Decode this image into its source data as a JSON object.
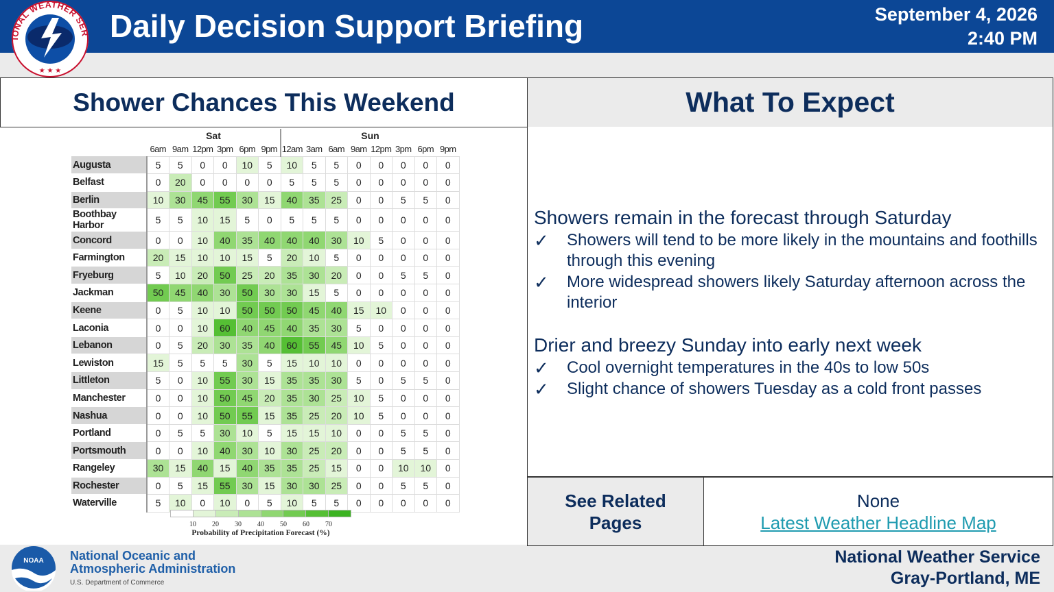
{
  "header": {
    "title": "Daily Decision Support Briefing",
    "date": "September 4, 2026",
    "time": "2:40 PM",
    "logo_text": "NATIONAL WEATHER SERVICE",
    "bg_color": "#0c4796"
  },
  "left_panel": {
    "title": "Shower Chances This Weekend",
    "table": {
      "days": [
        {
          "label": "Sat",
          "span": 6
        },
        {
          "label": "Sun",
          "span": 8
        }
      ],
      "hours": [
        "6am",
        "9am",
        "12pm",
        "3pm",
        "6pm",
        "9pm",
        "12am",
        "3am",
        "6am",
        "9am",
        "12pm",
        "3pm",
        "6pm",
        "9pm"
      ],
      "rows": [
        {
          "loc": "Augusta",
          "values": [
            5,
            5,
            0,
            0,
            10,
            5,
            10,
            5,
            5,
            0,
            0,
            0,
            0,
            0
          ]
        },
        {
          "loc": "Belfast",
          "values": [
            0,
            20,
            0,
            0,
            0,
            0,
            5,
            5,
            5,
            0,
            0,
            0,
            0,
            0
          ]
        },
        {
          "loc": "Berlin",
          "values": [
            10,
            30,
            45,
            55,
            30,
            15,
            40,
            35,
            25,
            0,
            0,
            5,
            5,
            0
          ]
        },
        {
          "loc": "Boothbay Harbor",
          "values": [
            5,
            5,
            10,
            15,
            5,
            0,
            5,
            5,
            5,
            0,
            0,
            0,
            0,
            0
          ]
        },
        {
          "loc": "Concord",
          "values": [
            0,
            0,
            10,
            40,
            35,
            40,
            40,
            40,
            30,
            10,
            5,
            0,
            0,
            0
          ]
        },
        {
          "loc": "Farmington",
          "values": [
            20,
            15,
            10,
            10,
            15,
            5,
            20,
            10,
            5,
            0,
            0,
            0,
            0,
            0
          ]
        },
        {
          "loc": "Fryeburg",
          "values": [
            5,
            10,
            20,
            50,
            25,
            20,
            35,
            30,
            20,
            0,
            0,
            5,
            5,
            0
          ]
        },
        {
          "loc": "Jackman",
          "values": [
            50,
            45,
            40,
            30,
            50,
            30,
            30,
            15,
            5,
            0,
            0,
            0,
            0,
            0
          ]
        },
        {
          "loc": "Keene",
          "values": [
            0,
            5,
            10,
            10,
            50,
            50,
            50,
            45,
            40,
            15,
            10,
            0,
            0,
            0
          ]
        },
        {
          "loc": "Laconia",
          "values": [
            0,
            0,
            10,
            60,
            40,
            45,
            40,
            35,
            30,
            5,
            0,
            0,
            0,
            0
          ]
        },
        {
          "loc": "Lebanon",
          "values": [
            0,
            5,
            20,
            30,
            35,
            40,
            60,
            55,
            45,
            10,
            5,
            0,
            0,
            0
          ]
        },
        {
          "loc": "Lewiston",
          "values": [
            15,
            5,
            5,
            5,
            30,
            5,
            15,
            10,
            10,
            0,
            0,
            0,
            0,
            0
          ]
        },
        {
          "loc": "Littleton",
          "values": [
            5,
            0,
            10,
            55,
            30,
            15,
            35,
            35,
            30,
            5,
            0,
            5,
            5,
            0
          ]
        },
        {
          "loc": "Manchester",
          "values": [
            0,
            0,
            10,
            50,
            45,
            20,
            35,
            30,
            25,
            10,
            5,
            0,
            0,
            0
          ]
        },
        {
          "loc": "Nashua",
          "values": [
            0,
            0,
            10,
            50,
            55,
            15,
            35,
            25,
            20,
            10,
            5,
            0,
            0,
            0
          ]
        },
        {
          "loc": "Portland",
          "values": [
            0,
            5,
            5,
            30,
            10,
            5,
            15,
            15,
            10,
            0,
            0,
            5,
            5,
            0
          ]
        },
        {
          "loc": "Portsmouth",
          "values": [
            0,
            0,
            10,
            40,
            30,
            10,
            30,
            25,
            20,
            0,
            0,
            5,
            5,
            0
          ]
        },
        {
          "loc": "Rangeley",
          "values": [
            30,
            15,
            40,
            15,
            40,
            35,
            35,
            25,
            15,
            0,
            0,
            10,
            10,
            0
          ]
        },
        {
          "loc": "Rochester",
          "values": [
            0,
            5,
            15,
            55,
            30,
            15,
            30,
            30,
            25,
            0,
            0,
            5,
            5,
            0
          ]
        },
        {
          "loc": "Waterville",
          "values": [
            5,
            10,
            0,
            10,
            0,
            5,
            10,
            5,
            5,
            0,
            0,
            0,
            0,
            0
          ]
        }
      ],
      "scale": {
        "ticks": [
          "10",
          "20",
          "30",
          "40",
          "50",
          "60",
          "70"
        ],
        "title": "Probability of Precipitation Forecast (%)",
        "colors": [
          "#ffffff",
          "#e3f5d8",
          "#c9ecb7",
          "#ade295",
          "#90d772",
          "#72cb51",
          "#55bf34",
          "#3cb322"
        ]
      }
    }
  },
  "right_panel": {
    "title": "What To Expect",
    "sections": [
      {
        "heading": "Showers remain in the forecast through Saturday",
        "items": [
          "Showers will tend to be more likely in the mountains and foothills through this evening",
          "More widespread showers likely Saturday afternoon across the interior"
        ]
      },
      {
        "heading": "Drier and breezy Sunday into early next week",
        "items": [
          "Cool overnight temperatures in the 40s to low 50s",
          "Slight chance of showers Tuesday as a cold front passes"
        ]
      }
    ],
    "check_symbol": "✓"
  },
  "related": {
    "label_line1": "See Related",
    "label_line2": "Pages",
    "none_text": "None",
    "link_text": "Latest Weather Headline Map",
    "link_color": "#1f9bb0"
  },
  "footer": {
    "noaa_logo_text": "NOAA",
    "noaa_line1": "National Oceanic and",
    "noaa_line2": "Atmospheric Administration",
    "noaa_dept": "U.S. Department of Commerce",
    "office_line1": "National Weather Service",
    "office_line2": "Gray-Portland, ME"
  }
}
